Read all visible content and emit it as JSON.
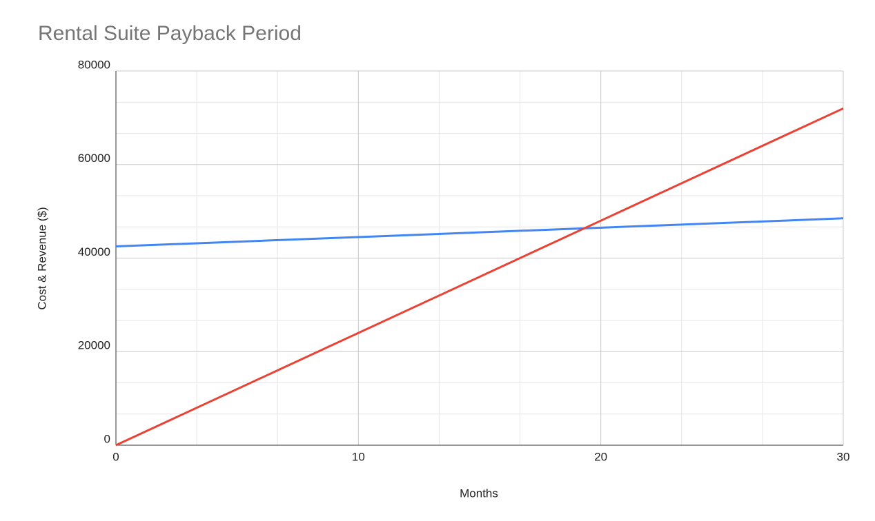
{
  "chart_data": {
    "type": "line",
    "title": "Rental Suite Payback Period",
    "x_label": "Months",
    "y_label": "Cost & Revenue ($)",
    "x": [
      0,
      10,
      20,
      30
    ],
    "series": [
      {
        "color": "#4285f4",
        "values": [
          42500,
          44500,
          46500,
          48500
        ]
      },
      {
        "color": "#ea4335",
        "values": [
          0,
          24000,
          48000,
          72000
        ]
      }
    ],
    "xlim": [
      0,
      30
    ],
    "xticks": [
      0,
      10,
      20,
      30
    ],
    "ylim": [
      0,
      80000
    ],
    "yticks": [
      0,
      20000,
      40000,
      60000,
      80000
    ],
    "grid": true
  }
}
